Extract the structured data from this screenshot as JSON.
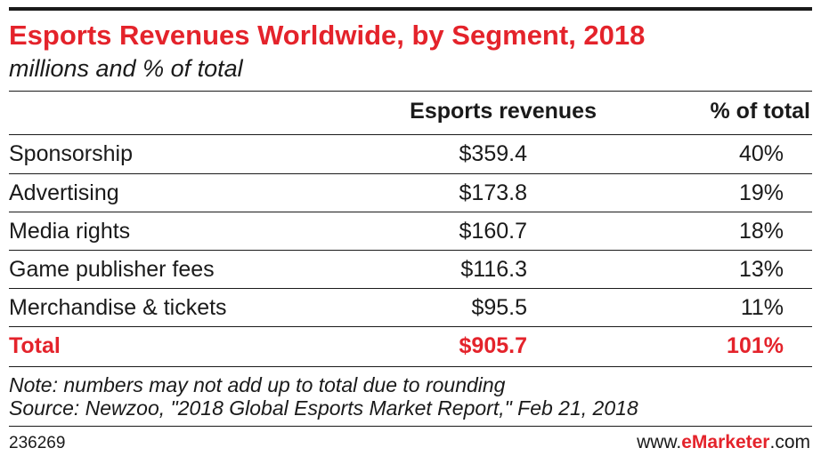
{
  "chart_data": {
    "type": "table",
    "title": "Esports Revenues Worldwide, by Segment, 2018",
    "subtitle": "millions and % of total",
    "columns": [
      "",
      "Esports revenues",
      "% of total"
    ],
    "rows": [
      {
        "segment": "Sponsorship",
        "revenue": "$359.4",
        "percent": "40%"
      },
      {
        "segment": "Advertising",
        "revenue": "$173.8",
        "percent": "19%"
      },
      {
        "segment": "Media rights",
        "revenue": "$160.7",
        "percent": "18%"
      },
      {
        "segment": "Game publisher fees",
        "revenue": "$116.3",
        "percent": "13%"
      },
      {
        "segment": "Merchandise & tickets",
        "revenue": "$95.5",
        "percent": "11%"
      }
    ],
    "total": {
      "segment": "Total",
      "revenue": "$905.7",
      "percent": "101%"
    },
    "note": "Note: numbers may not add up to total due to rounding",
    "source": "Source: Newzoo, \"2018 Global Esports Market Report,\" Feb 21, 2018"
  },
  "footer": {
    "id": "236269",
    "brand_prefix": "www.",
    "brand_bold": "eMarketer",
    "brand_suffix": ".com"
  },
  "colors": {
    "accent": "#e4232b",
    "text": "#1a1a1a"
  }
}
